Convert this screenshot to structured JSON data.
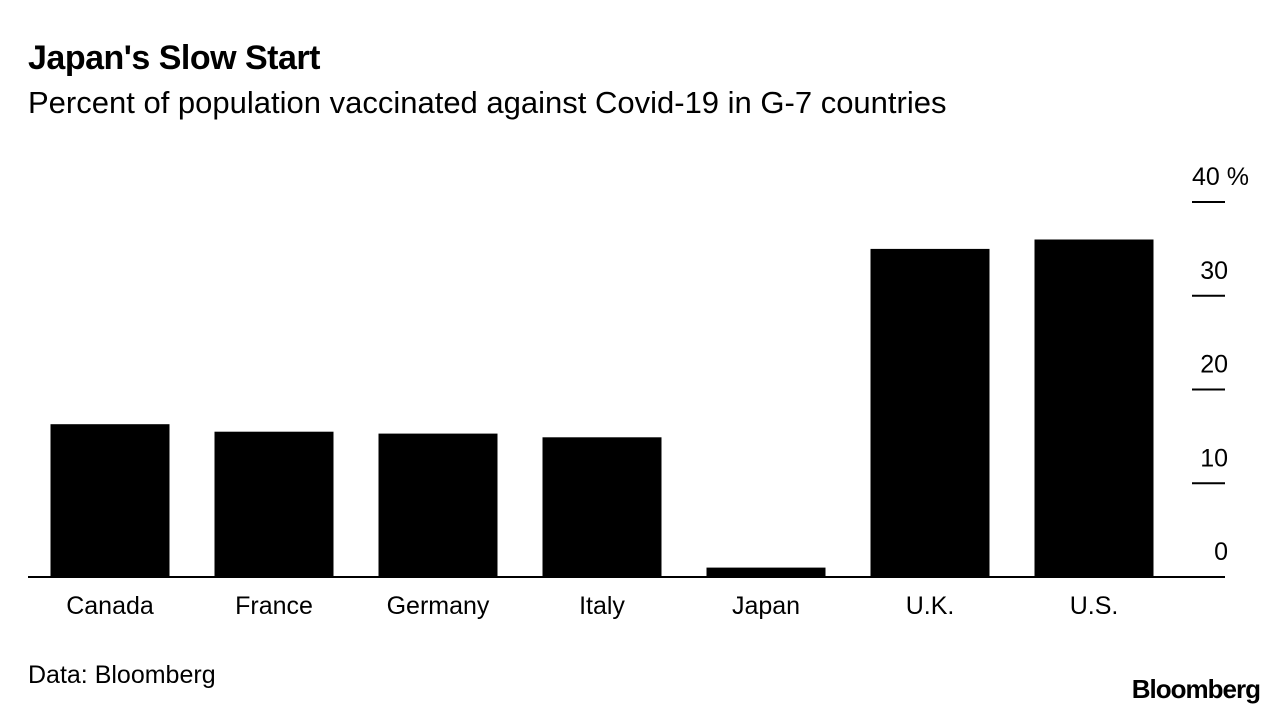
{
  "header": {
    "title": "Japan's Slow Start",
    "subtitle": "Percent of population vaccinated against Covid-19 in G-7 countries"
  },
  "footer": {
    "source": "Data: Bloomberg",
    "logo": "Bloomberg"
  },
  "colors": {
    "bar": "#000000",
    "background": "#ffffff",
    "axis": "#000000"
  },
  "chart_data": {
    "type": "bar",
    "title": "Japan's Slow Start",
    "subtitle": "Percent of population vaccinated against Covid-19 in G-7 countries",
    "xlabel": "",
    "ylabel": "",
    "categories": [
      "Canada",
      "France",
      "Germany",
      "Italy",
      "Japan",
      "U.K.",
      "U.S."
    ],
    "values": [
      16.3,
      15.5,
      15.3,
      14.9,
      1.0,
      35.0,
      36.0
    ],
    "ylim": [
      0,
      40
    ],
    "yticks": [
      0,
      10,
      20,
      30,
      40
    ],
    "ytick_labels": [
      "0",
      "10",
      "20",
      "30",
      "40 %"
    ],
    "y_axis_side": "right",
    "grid": false,
    "legend": "none"
  }
}
